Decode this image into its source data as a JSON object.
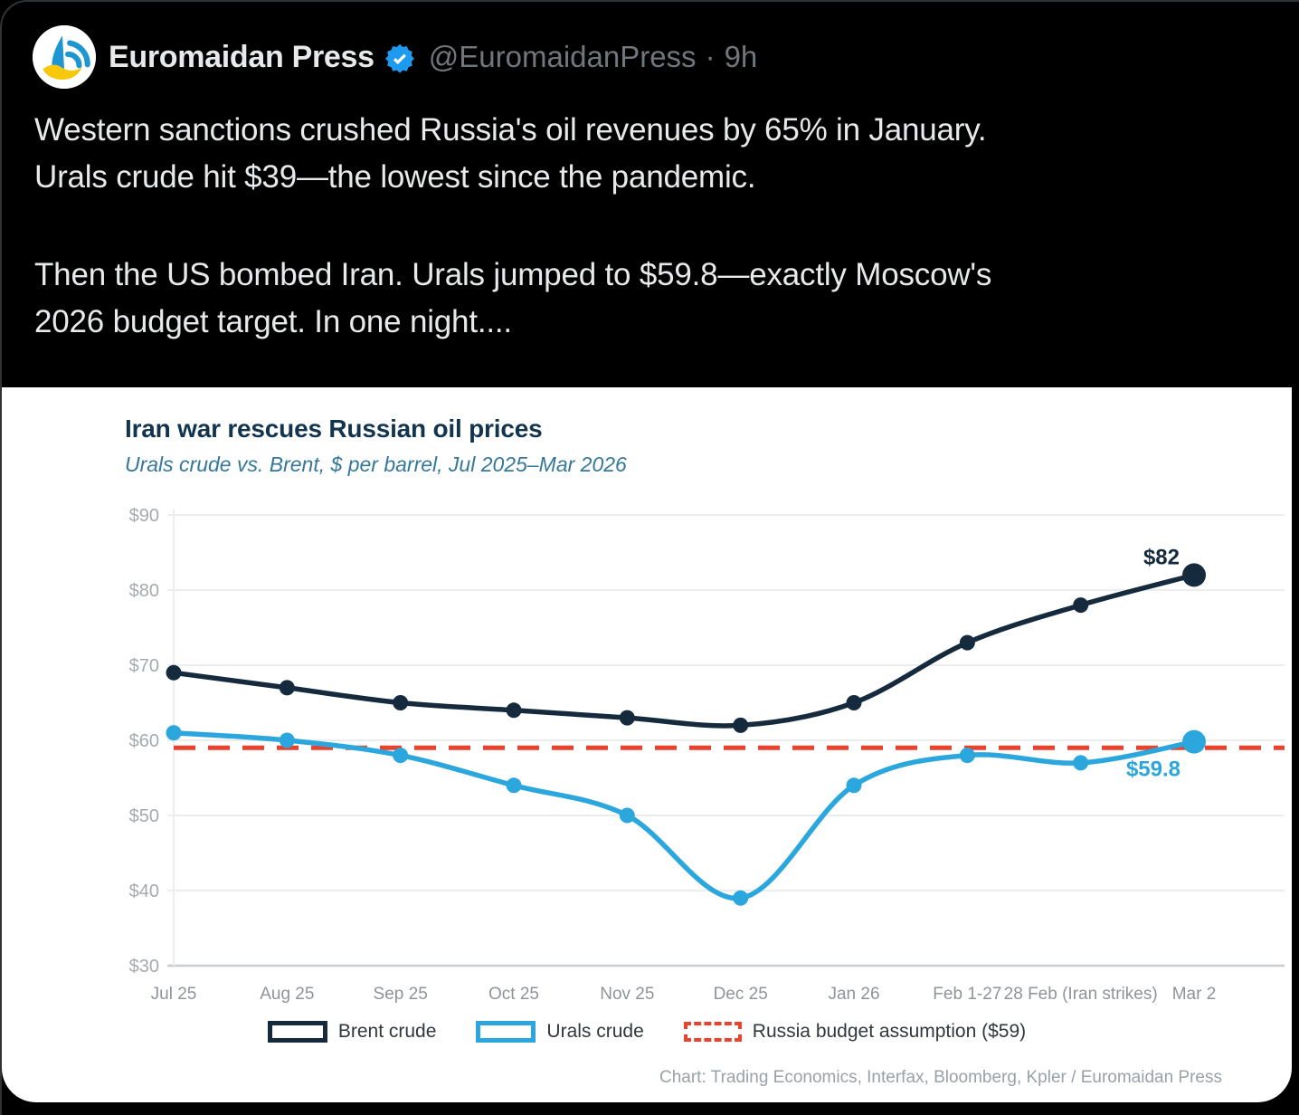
{
  "tweet": {
    "display_name": "Euromaidan Press",
    "handle": "@EuromaidanPress",
    "separator": "·",
    "timestamp": "9h",
    "paragraphs": [
      [
        "Western sanctions crushed Russia's oil revenues by 65% in January.",
        "Urals crude hit $39—the lowest since the pandemic."
      ],
      [
        "Then the US bombed Iran. Urals jumped to $59.8—exactly Moscow's",
        "2026 budget target. In one night...."
      ]
    ]
  },
  "chart_data": {
    "type": "line",
    "title": "Iran war rescues Russian oil prices",
    "subtitle": "Urals crude vs. Brent, $ per barrel, Jul 2025–Mar 2026",
    "categories": [
      "Jul 25",
      "Aug 25",
      "Sep 25",
      "Oct 25",
      "Nov 25",
      "Dec 25",
      "Jan 26",
      "Feb 1-27",
      "28 Feb (Iran strikes)",
      "Mar 2"
    ],
    "series": [
      {
        "name": "Brent crude",
        "color": "#152b3d",
        "values": [
          69,
          67,
          65,
          64,
          63,
          62,
          65,
          73,
          78,
          82
        ],
        "end_label": "$82"
      },
      {
        "name": "Urals crude",
        "color": "#2ba7dd",
        "values": [
          61,
          60,
          58,
          54,
          50,
          39,
          54,
          58,
          57,
          59.8
        ],
        "end_label": "$59.8"
      }
    ],
    "reference_line": {
      "label": "Russia budget assumption ($59)",
      "value": 59,
      "color": "#e8432e",
      "style": "dashed"
    },
    "ylim": [
      30,
      90
    ],
    "y_ticks": [
      90,
      80,
      70,
      60,
      50,
      40,
      30
    ],
    "y_tick_prefix": "$",
    "grid": "horizontal",
    "legend_position": "bottom",
    "credit": "Chart: Trading Economics, Interfax, Bloomberg, Kpler / Euromaidan Press"
  }
}
